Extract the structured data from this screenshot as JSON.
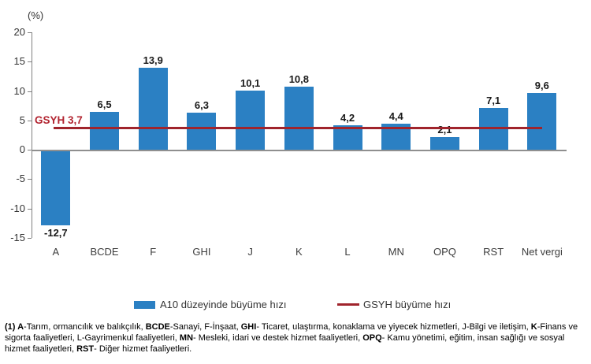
{
  "chart": {
    "unit_label": "(%)"
  },
  "chart_data": {
    "type": "bar",
    "title": "",
    "xlabel": "",
    "ylabel": "(%)",
    "categories": [
      "A",
      "BCDE",
      "F",
      "GHI",
      "J",
      "K",
      "L",
      "MN",
      "OPQ",
      "RST",
      "Net vergi"
    ],
    "values": [
      -12.7,
      6.5,
      13.9,
      6.3,
      10.1,
      10.8,
      4.2,
      4.4,
      2.1,
      7.1,
      9.6
    ],
    "value_labels": [
      "-12,7",
      "6,5",
      "13,9",
      "6,3",
      "10,1",
      "10,8",
      "4,2",
      "4,4",
      "2,1",
      "7,1",
      "9,6"
    ],
    "series_name": "A10 düzeyinde büyüme hızı",
    "reference_line": {
      "name": "GSYH büyüme hızı",
      "label": "GSYH 3,7",
      "value": 3.7
    },
    "ylim": [
      -15,
      20
    ],
    "yticks": [
      20,
      15,
      10,
      5,
      0,
      -5,
      -10,
      -15
    ],
    "ytick_labels": [
      "20",
      "15",
      "10",
      "5",
      "0",
      "-5",
      "-10",
      "-15"
    ],
    "grid": false,
    "legend_position": "bottom",
    "bar_color": "#2b80c3",
    "line_color": "#a0242c",
    "line_label_color": "#b22430"
  },
  "legend": {
    "bar_label": "A10 düzeyinde büyüme hızı",
    "line_label": "GSYH büyüme hızı"
  },
  "footnote": {
    "segments": [
      {
        "text": "(1) A",
        "bold": true
      },
      {
        "text": "-Tarım, ormancılık ve balıkçılık, ",
        "bold": false
      },
      {
        "text": "BCDE",
        "bold": true
      },
      {
        "text": "-Sanayi, F-İnşaat, ",
        "bold": false
      },
      {
        "text": "GHI",
        "bold": true
      },
      {
        "text": "- Ticaret, ulaştırma, konaklama ve yiyecek hizmetleri, J-Bilgi ve iletişim, ",
        "bold": false
      },
      {
        "text": "K",
        "bold": true
      },
      {
        "text": "-Finans ve sigorta faaliyetleri, L-Gayrimenkul faaliyetleri, ",
        "bold": false
      },
      {
        "text": "MN",
        "bold": true
      },
      {
        "text": "- Mesleki, idari ve destek hizmet faaliyetleri, ",
        "bold": false
      },
      {
        "text": "OPQ",
        "bold": true
      },
      {
        "text": "- Kamu yönetimi, eğitim, insan sağlığı ve sosyal hizmet faaliyetleri, ",
        "bold": false
      },
      {
        "text": "RST",
        "bold": true
      },
      {
        "text": "- Diğer hizmet faaliyetleri.",
        "bold": false
      }
    ]
  }
}
